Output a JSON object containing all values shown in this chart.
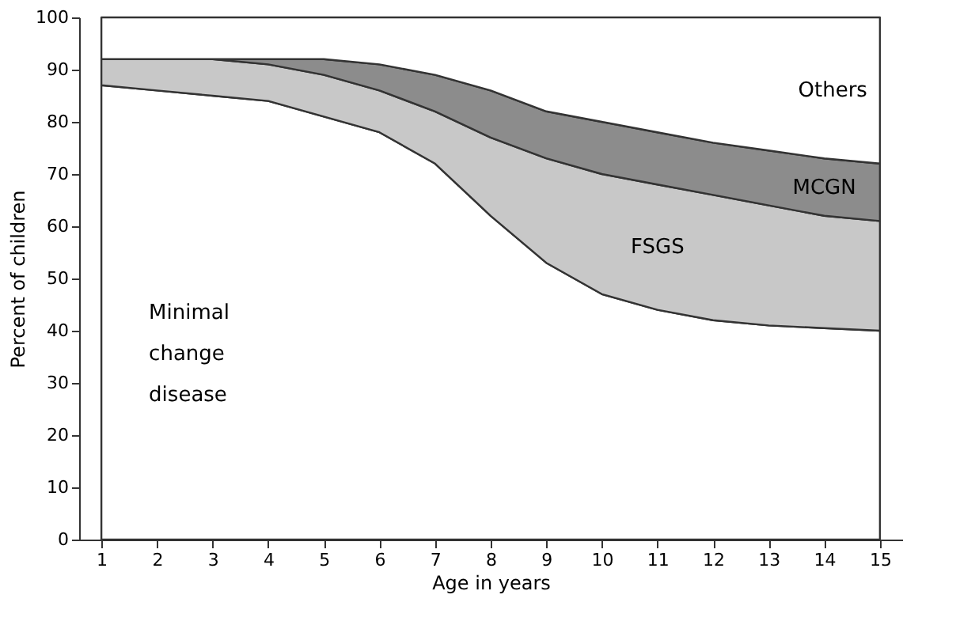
{
  "chart_data": {
    "type": "area",
    "stacked": true,
    "xlabel": "Age in years",
    "ylabel": "Percent of children",
    "x": [
      1,
      2,
      3,
      4,
      5,
      6,
      7,
      8,
      9,
      10,
      11,
      12,
      13,
      14,
      15
    ],
    "series": [
      {
        "name": "Minimal change disease",
        "color": "#ffffff",
        "values": [
          87,
          86,
          85,
          84,
          81,
          78,
          72,
          62,
          53,
          47,
          44,
          42,
          41,
          40.5,
          40
        ]
      },
      {
        "name": "FSGS",
        "color": "#c8c8c8",
        "values": [
          5,
          6,
          7,
          7,
          8,
          8,
          10,
          15,
          20,
          23,
          24,
          24,
          23,
          21.5,
          21
        ]
      },
      {
        "name": "MCGN",
        "color": "#8c8c8c",
        "values": [
          0,
          0,
          0,
          1,
          3,
          5,
          7,
          9,
          9,
          10,
          10,
          10,
          10.5,
          11,
          11
        ]
      },
      {
        "name": "Others",
        "color": "#ffffff",
        "values": [
          8,
          8,
          8,
          8,
          8,
          9,
          11,
          14,
          18,
          20,
          22,
          24,
          25.5,
          27,
          28
        ]
      }
    ],
    "xlim": [
      0.6,
      15.4
    ],
    "xticks": [
      1,
      2,
      3,
      4,
      5,
      6,
      7,
      8,
      9,
      10,
      11,
      12,
      13,
      14,
      15
    ],
    "ylim": [
      0,
      100
    ],
    "yticks": [
      0,
      10,
      20,
      30,
      40,
      50,
      60,
      70,
      80,
      90,
      100
    ],
    "grid": false,
    "legend": false
  }
}
